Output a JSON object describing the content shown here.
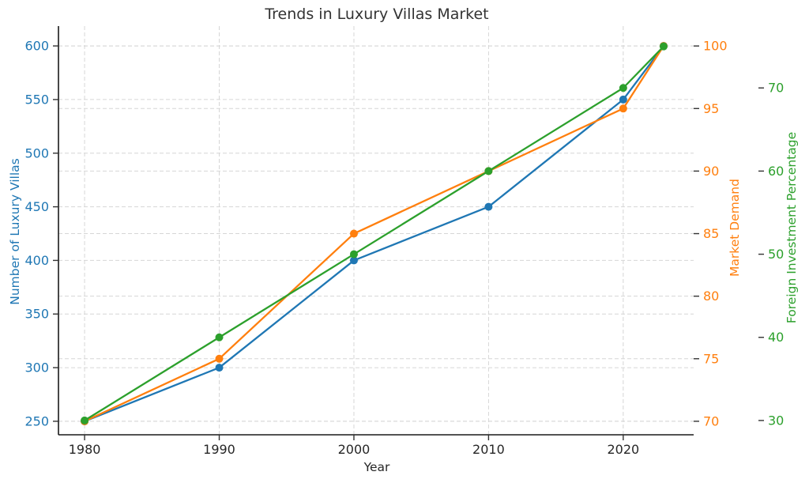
{
  "chart_data": {
    "type": "line",
    "title": "Trends in Luxury Villas Market",
    "xlabel": "Year",
    "x": [
      1980,
      1990,
      2000,
      2010,
      2020,
      2023
    ],
    "x_ticks": [
      1980,
      1990,
      2000,
      2010,
      2020
    ],
    "xlim": [
      1978.06,
      2025.23
    ],
    "grid": "dashed (left axis and demand axis only)",
    "colors": {
      "background": "#ffffff",
      "grid": "#d6d6d6",
      "spine": "#1a1a1a",
      "tick_mark": "#333333",
      "x_tick_label": "#262626",
      "title": "#333333"
    },
    "axes": {
      "villas": {
        "label": "Number of Luxury Villas",
        "side": "left",
        "offset": 0,
        "color": "#1f77b4",
        "ticks": [
          250,
          300,
          350,
          400,
          450,
          500,
          550,
          600
        ],
        "ylim": [
          237.4,
          618.5
        ],
        "grid": true
      },
      "demand": {
        "label": "Market Demand",
        "side": "right",
        "offset": 0,
        "color": "#ff7f0e",
        "ticks": [
          70,
          75,
          80,
          85,
          90,
          95,
          100
        ],
        "ylim": [
          68.92,
          101.59
        ],
        "grid": true
      },
      "investment": {
        "label": "Foreign Investment Percentage",
        "side": "right",
        "offset": 82,
        "color": "#2ca02c",
        "ticks": [
          30,
          40,
          50,
          60,
          70
        ],
        "ylim": [
          28.28,
          77.44
        ],
        "grid": false
      }
    },
    "series": [
      {
        "name": "Number of Luxury Villas",
        "axis": "villas",
        "color": "#1f77b4",
        "values": [
          250,
          300,
          400,
          450,
          550,
          600
        ]
      },
      {
        "name": "Market Demand",
        "axis": "demand",
        "color": "#ff7f0e",
        "values": [
          70,
          75,
          85,
          90,
          95,
          100
        ]
      },
      {
        "name": "Foreign Investment Percentage",
        "axis": "investment",
        "color": "#2ca02c",
        "values": [
          30,
          40,
          50,
          60,
          70,
          75
        ]
      }
    ]
  }
}
